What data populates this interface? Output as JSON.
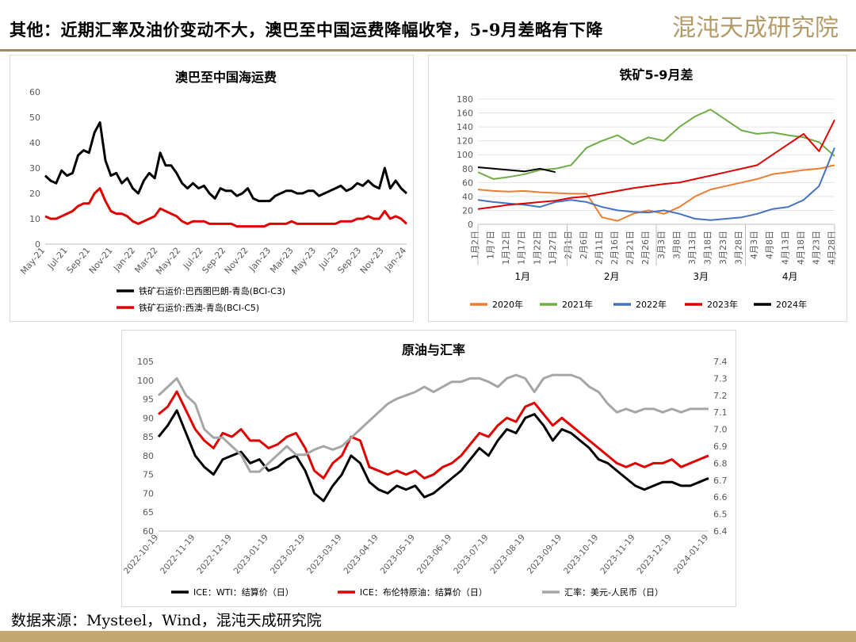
{
  "header": {
    "title": "其他：近期汇率及油价变动不大，澳巴至中国运费降幅收窄，5-9月差略有下降",
    "logo_text": "混沌天成研究院"
  },
  "footer": {
    "source": "数据来源：Mysteel，Wind，混沌天成研究院"
  },
  "colors": {
    "accent": "#a08a60",
    "black_series": "#000000",
    "red_series": "#e00000",
    "gray_series": "#a6a6a6",
    "c2020": "#ed7d31",
    "c2021": "#70ad47",
    "c2022": "#4472c4",
    "c2023": "#e00000",
    "c2024": "#000000"
  },
  "chart_data": [
    {
      "type": "line",
      "title": "澳巴至中国海运费",
      "ylim": [
        0,
        60
      ],
      "y_ticks": [
        0,
        10,
        20,
        30,
        40,
        50,
        60
      ],
      "x_ticks": [
        "May-21",
        "Jul-21",
        "Sep-21",
        "Nov-21",
        "Jan-22",
        "Mar-22",
        "May-22",
        "Jul-22",
        "Sep-22",
        "Nov-22",
        "Jan-23",
        "Mar-23",
        "May-23",
        "Jul-23",
        "Sep-23",
        "Nov-23",
        "Jan-24"
      ],
      "legend_position": "bottom",
      "series": [
        {
          "name": "铁矿石运价:巴西图巴朗-青岛(BCI-C3)",
          "color": "#000000",
          "values": [
            27,
            25,
            24,
            29,
            27,
            28,
            35,
            37,
            36,
            44,
            48,
            33,
            27,
            28,
            24,
            26,
            22,
            20,
            25,
            28,
            26,
            36,
            31,
            31,
            28,
            24,
            22,
            24,
            22,
            23,
            20,
            18,
            22,
            21,
            21,
            19,
            20,
            22,
            18,
            17,
            17,
            17,
            19,
            20,
            21,
            21,
            20,
            20,
            21,
            21,
            19,
            20,
            21,
            22,
            23,
            21,
            22,
            24,
            23,
            25,
            23,
            22,
            30,
            22,
            25,
            22,
            20
          ]
        },
        {
          "name": "铁矿石运价:西澳-青岛(BCI-C5)",
          "color": "#e00000",
          "values": [
            11,
            10,
            10,
            11,
            12,
            13,
            15,
            16,
            16,
            20,
            22,
            17,
            13,
            12,
            12,
            11,
            9,
            8,
            9,
            10,
            11,
            14,
            13,
            12,
            11,
            9,
            8,
            9,
            9,
            9,
            8,
            8,
            8,
            8,
            8,
            7,
            7,
            7,
            7,
            7,
            7,
            8,
            8,
            8,
            8,
            9,
            8,
            8,
            8,
            8,
            8,
            8,
            8,
            8,
            9,
            9,
            9,
            10,
            10,
            11,
            10,
            10,
            13,
            10,
            11,
            10,
            8
          ]
        }
      ]
    },
    {
      "type": "line",
      "title": "铁矿5-9月差",
      "ylim": [
        0,
        180
      ],
      "y_ticks": [
        0,
        20,
        40,
        60,
        80,
        100,
        120,
        140,
        160,
        180
      ],
      "x_ticks": [
        "1月2日",
        "1月7日",
        "1月12日",
        "1月17日",
        "1月22日",
        "1月27日",
        "2月1日",
        "2月6日",
        "2月11日",
        "2月16日",
        "2月21日",
        "2月26日",
        "3月3日",
        "3月8日",
        "3月13日",
        "3月18日",
        "3月23日",
        "3月28日",
        "4月3日",
        "4月8日",
        "4月13日",
        "4月18日",
        "4月23日",
        "4月28日"
      ],
      "month_groups": [
        "1月",
        "2月",
        "3月",
        "4月"
      ],
      "legend_position": "bottom",
      "series": [
        {
          "name": "2020年",
          "color": "#ed7d31",
          "values": [
            50,
            48,
            47,
            48,
            46,
            45,
            44,
            44,
            10,
            5,
            15,
            20,
            15,
            25,
            40,
            50,
            55,
            60,
            65,
            72,
            75,
            78,
            80,
            85
          ]
        },
        {
          "name": "2021年",
          "color": "#70ad47",
          "values": [
            75,
            65,
            68,
            72,
            78,
            80,
            85,
            110,
            120,
            128,
            115,
            125,
            120,
            140,
            155,
            165,
            150,
            135,
            130,
            132,
            128,
            125,
            118,
            98
          ]
        },
        {
          "name": "2022年",
          "color": "#4472c4",
          "values": [
            35,
            32,
            30,
            28,
            25,
            32,
            35,
            32,
            25,
            20,
            18,
            17,
            20,
            15,
            8,
            6,
            8,
            10,
            15,
            22,
            25,
            35,
            55,
            110
          ]
        },
        {
          "name": "2023年",
          "color": "#e00000",
          "values": [
            22,
            25,
            28,
            30,
            32,
            34,
            38,
            40,
            44,
            48,
            52,
            55,
            58,
            60,
            65,
            70,
            75,
            80,
            85,
            100,
            115,
            130,
            105,
            150
          ]
        },
        {
          "name": "2024年",
          "color": "#000000",
          "values": [
            82,
            80,
            78,
            76,
            80,
            75
          ]
        }
      ]
    },
    {
      "type": "line",
      "title": "原油与汇率",
      "ylim": [
        60,
        105
      ],
      "y_ticks": [
        60,
        65,
        70,
        75,
        80,
        85,
        90,
        95,
        100,
        105
      ],
      "y2lim": [
        6.4,
        7.4
      ],
      "y2_ticks": [
        "6.4",
        "6.5",
        "6.6",
        "6.7",
        "6.8",
        "6.9",
        "7.0",
        "7.1",
        "7.2",
        "7.3",
        "7.4"
      ],
      "x_ticks": [
        "2022-10-19",
        "2022-11-19",
        "2022-12-19",
        "2023-01-19",
        "2023-02-19",
        "2023-03-19",
        "2023-04-19",
        "2023-05-19",
        "2023-06-19",
        "2023-07-19",
        "2023-08-19",
        "2023-09-19",
        "2023-10-19",
        "2023-11-19",
        "2023-12-19",
        "2024-01-19"
      ],
      "legend_position": "bottom",
      "series": [
        {
          "name": "ICE：WTI：结算价（日）",
          "color": "#000000",
          "axis": "left",
          "values": [
            85,
            88,
            92,
            86,
            80,
            77,
            75,
            79,
            80,
            81,
            78,
            79,
            76,
            77,
            79,
            80,
            76,
            70,
            68,
            72,
            75,
            80,
            78,
            73,
            71,
            70,
            72,
            71,
            72,
            69,
            70,
            72,
            74,
            76,
            79,
            82,
            80,
            84,
            87,
            86,
            90,
            91,
            88,
            84,
            87,
            86,
            84,
            82,
            79,
            78,
            76,
            74,
            72,
            71,
            72,
            73,
            73,
            72,
            72,
            73,
            74
          ]
        },
        {
          "name": "ICE：布伦特原油：结算价（日）",
          "color": "#e00000",
          "axis": "left",
          "values": [
            91,
            93,
            97,
            92,
            87,
            84,
            82,
            86,
            85,
            87,
            84,
            84,
            82,
            83,
            85,
            86,
            82,
            76,
            74,
            78,
            80,
            85,
            84,
            77,
            76,
            75,
            76,
            75,
            76,
            74,
            75,
            77,
            78,
            80,
            83,
            86,
            85,
            88,
            90,
            89,
            93,
            94,
            91,
            88,
            90,
            88,
            86,
            84,
            82,
            80,
            78,
            77,
            78,
            77,
            78,
            78,
            79,
            77,
            78,
            79,
            80
          ]
        },
        {
          "name": "汇率：美元-人民币（日）",
          "color": "#a6a6a6",
          "axis": "right",
          "values": [
            7.2,
            7.25,
            7.3,
            7.2,
            7.15,
            7.0,
            6.95,
            6.95,
            6.9,
            6.85,
            6.75,
            6.75,
            6.8,
            6.85,
            6.9,
            6.85,
            6.85,
            6.88,
            6.9,
            6.88,
            6.9,
            6.95,
            7.0,
            7.05,
            7.1,
            7.15,
            7.18,
            7.2,
            7.22,
            7.25,
            7.22,
            7.25,
            7.28,
            7.28,
            7.3,
            7.3,
            7.28,
            7.25,
            7.3,
            7.32,
            7.3,
            7.22,
            7.3,
            7.32,
            7.32,
            7.32,
            7.3,
            7.25,
            7.22,
            7.15,
            7.1,
            7.12,
            7.1,
            7.12,
            7.12,
            7.1,
            7.12,
            7.1,
            7.12,
            7.12,
            7.12
          ]
        }
      ]
    }
  ]
}
